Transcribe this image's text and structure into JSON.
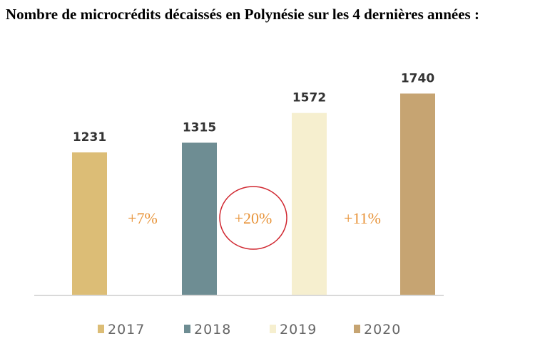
{
  "title": "Nombre de microcrédits décaissés en Polynésie sur les 4 dernières années :",
  "chart_data": {
    "type": "bar",
    "title": "Nombre de microcrédits décaissés en Polynésie sur les 4 dernières années :",
    "categories": [
      "2017",
      "2018",
      "2019",
      "2020"
    ],
    "values": [
      1231,
      1315,
      1572,
      1740
    ],
    "colors": [
      "#dcbd76",
      "#6e8d93",
      "#f6efcf",
      "#c6a472"
    ],
    "growth_labels": [
      "+7%",
      "+20%",
      "+11%"
    ],
    "highlighted_growth": "+20%",
    "highlight_color": "#d0262f",
    "growth_label_color": "#e8943a",
    "legend": [
      "2017",
      "2018",
      "2019",
      "2020"
    ],
    "legend_position": "bottom",
    "grid": false,
    "ylim": [
      0,
      1740
    ]
  }
}
